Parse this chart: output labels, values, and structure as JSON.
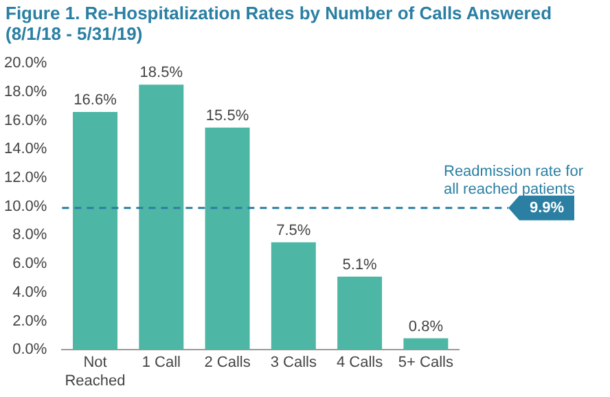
{
  "chart_data": {
    "type": "bar",
    "title": "Figure 1. Re-Hospitalization Rates by Number of Calls Answered",
    "subtitle": "(8/1/18 - 5/31/19)",
    "categories": [
      "Not Reached",
      "1 Call",
      "2 Calls",
      "3 Calls",
      "4 Calls",
      "5+ Calls"
    ],
    "values": [
      16.6,
      18.5,
      15.5,
      7.5,
      5.1,
      0.8
    ],
    "value_labels": [
      "16.6%",
      "18.5%",
      "15.5%",
      "7.5%",
      "5.1%",
      "0.8%"
    ],
    "color": "#4db6a4",
    "ylim": [
      0,
      20
    ],
    "yticks": [
      {
        "value": 0,
        "label": "0.0%"
      },
      {
        "value": 2,
        "label": "2.0%"
      },
      {
        "value": 4,
        "label": "4.0%"
      },
      {
        "value": 6,
        "label": "6.0%"
      },
      {
        "value": 8,
        "label": "8.0%"
      },
      {
        "value": 10,
        "label": "10.0%"
      },
      {
        "value": 12,
        "label": "12.0%"
      },
      {
        "value": 14,
        "label": "14.0%"
      },
      {
        "value": 16,
        "label": "16.0%"
      },
      {
        "value": 18,
        "label": "18.0%"
      },
      {
        "value": 20,
        "label": "20.0%"
      }
    ],
    "ref_lines": [
      {
        "axis": "y",
        "value": 9.9,
        "label": "9.9%",
        "color": "#2a7fa3",
        "line_style": "dashed"
      }
    ],
    "annotations": [
      "Readmission rate for all reached patients"
    ],
    "grid": false,
    "legend": false
  }
}
